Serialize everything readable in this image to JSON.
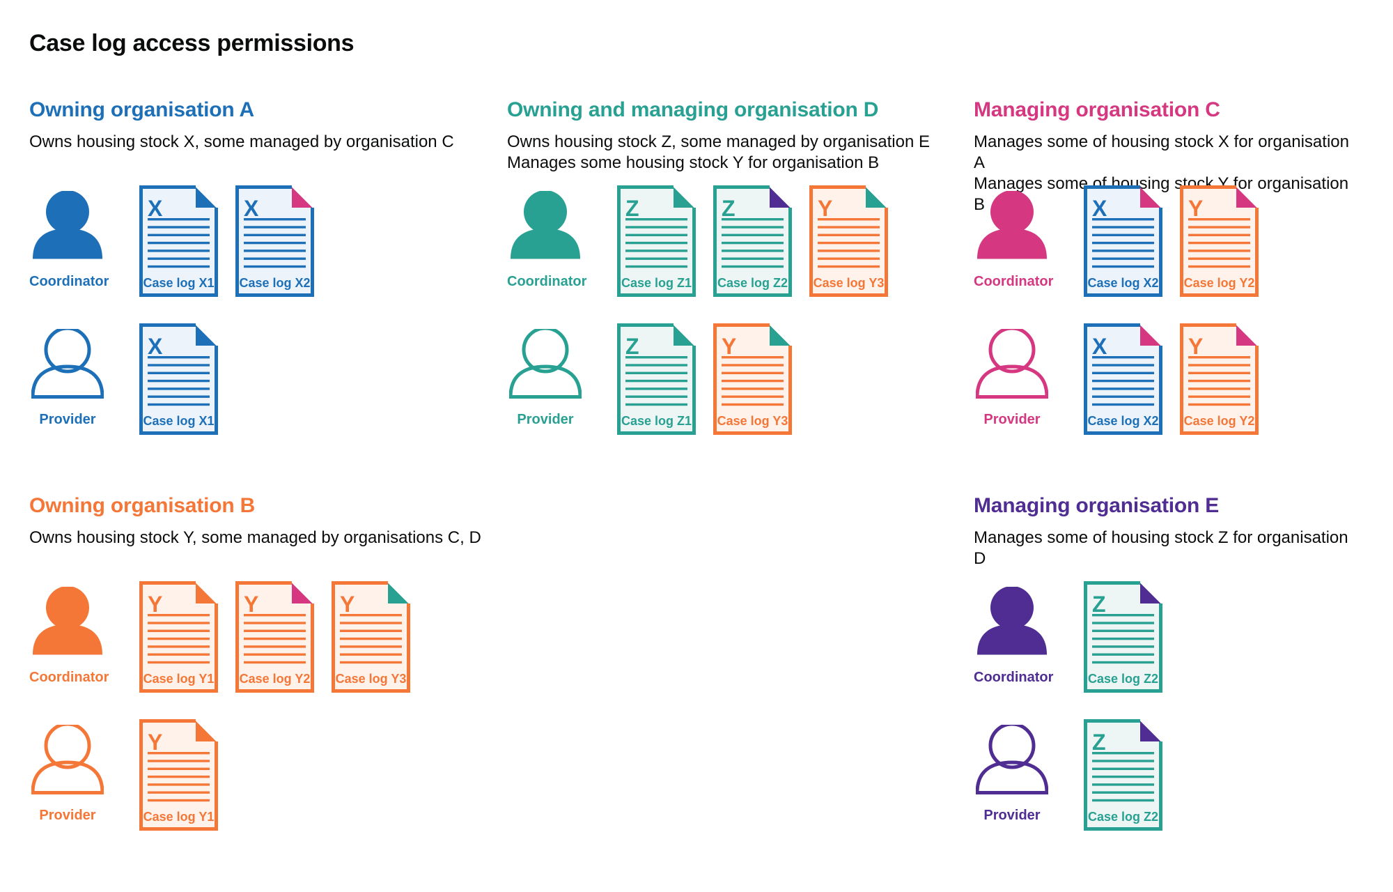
{
  "page": {
    "title": "Case log access permissions"
  },
  "colors": {
    "blue": {
      "main": "#1d70b8",
      "tint": "#edf3fa"
    },
    "teal": {
      "main": "#28a092",
      "tint": "#edf6f4"
    },
    "pink": {
      "main": "#d53880",
      "tint": "#fbeef4"
    },
    "orange": {
      "main": "#f47738",
      "tint": "#fef2eb"
    },
    "purple": {
      "main": "#4f2d92",
      "tint": "#f0edf7"
    }
  },
  "roles": {
    "coordinator": "Coordinator",
    "provider": "Provider"
  },
  "sections": [
    {
      "id": "owning-organisation-a",
      "title": "Owning organisation A",
      "color": "blue",
      "grid": {
        "row": 1,
        "col": 1
      },
      "description_lines": [
        "Owns housing stock X, some managed by organisation C"
      ],
      "actors": [
        {
          "role": "Coordinator",
          "icon": "person-filled",
          "case_logs": [
            {
              "label": "Case log X1",
              "letter": "X",
              "doc_color": "blue",
              "fold_color": "blue"
            },
            {
              "label": "Case log X2",
              "letter": "X",
              "doc_color": "blue",
              "fold_color": "pink"
            }
          ]
        },
        {
          "role": "Provider",
          "icon": "person-outline",
          "case_logs": [
            {
              "label": "Case log X1",
              "letter": "X",
              "doc_color": "blue",
              "fold_color": "blue"
            }
          ]
        }
      ]
    },
    {
      "id": "owning-and-managing-organisation-d",
      "title": "Owning and managing organisation D",
      "color": "teal",
      "grid": {
        "row": 1,
        "col": 2
      },
      "description_lines": [
        "Owns housing stock Z, some managed by organisation E",
        "Manages some housing stock Y for organisation B"
      ],
      "actors": [
        {
          "role": "Coordinator",
          "icon": "person-filled",
          "case_logs": [
            {
              "label": "Case log Z1",
              "letter": "Z",
              "doc_color": "teal",
              "fold_color": "teal"
            },
            {
              "label": "Case log Z2",
              "letter": "Z",
              "doc_color": "teal",
              "fold_color": "purple"
            },
            {
              "label": "Case log Y3",
              "letter": "Y",
              "doc_color": "orange",
              "fold_color": "teal"
            }
          ]
        },
        {
          "role": "Provider",
          "icon": "person-outline",
          "case_logs": [
            {
              "label": "Case log Z1",
              "letter": "Z",
              "doc_color": "teal",
              "fold_color": "teal"
            },
            {
              "label": "Case log Y3",
              "letter": "Y",
              "doc_color": "orange",
              "fold_color": "teal"
            }
          ]
        }
      ]
    },
    {
      "id": "managing-organisation-c",
      "title": "Managing organisation C",
      "color": "pink",
      "grid": {
        "row": 1,
        "col": 3
      },
      "description_lines": [
        "Manages some of housing stock X for organisation A",
        "Manages some of housing stock Y for organisation B"
      ],
      "actors": [
        {
          "role": "Coordinator",
          "icon": "person-filled",
          "case_logs": [
            {
              "label": "Case log X2",
              "letter": "X",
              "doc_color": "blue",
              "fold_color": "pink"
            },
            {
              "label": "Case log Y2",
              "letter": "Y",
              "doc_color": "orange",
              "fold_color": "pink"
            }
          ]
        },
        {
          "role": "Provider",
          "icon": "person-outline",
          "case_logs": [
            {
              "label": "Case log X2",
              "letter": "X",
              "doc_color": "blue",
              "fold_color": "pink"
            },
            {
              "label": "Case log Y2",
              "letter": "Y",
              "doc_color": "orange",
              "fold_color": "pink"
            }
          ]
        }
      ]
    },
    {
      "id": "owning-organisation-b",
      "title": "Owning organisation B",
      "color": "orange",
      "grid": {
        "row": 2,
        "col": 1
      },
      "description_lines": [
        "Owns housing stock Y, some managed by organisations C, D"
      ],
      "actors": [
        {
          "role": "Coordinator",
          "icon": "person-filled",
          "case_logs": [
            {
              "label": "Case log Y1",
              "letter": "Y",
              "doc_color": "orange",
              "fold_color": "orange"
            },
            {
              "label": "Case log Y2",
              "letter": "Y",
              "doc_color": "orange",
              "fold_color": "pink"
            },
            {
              "label": "Case log Y3",
              "letter": "Y",
              "doc_color": "orange",
              "fold_color": "teal"
            }
          ]
        },
        {
          "role": "Provider",
          "icon": "person-outline",
          "case_logs": [
            {
              "label": "Case log Y1",
              "letter": "Y",
              "doc_color": "orange",
              "fold_color": "orange"
            }
          ]
        }
      ]
    },
    {
      "id": "managing-organisation-e",
      "title": "Managing organisation E",
      "color": "purple",
      "grid": {
        "row": 2,
        "col": 3
      },
      "description_lines": [
        "Manages some of housing stock Z for organisation D"
      ],
      "actors": [
        {
          "role": "Coordinator",
          "icon": "person-filled",
          "case_logs": [
            {
              "label": "Case log Z2",
              "letter": "Z",
              "doc_color": "teal",
              "fold_color": "purple"
            }
          ]
        },
        {
          "role": "Provider",
          "icon": "person-outline",
          "case_logs": [
            {
              "label": "Case log Z2",
              "letter": "Z",
              "doc_color": "teal",
              "fold_color": "purple"
            }
          ]
        }
      ]
    }
  ]
}
